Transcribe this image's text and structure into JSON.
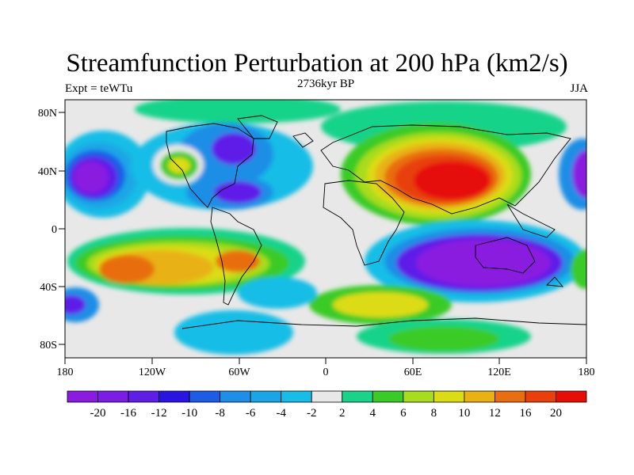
{
  "title": "Streamfunction Perturbation at 200 hPa (km2/s)",
  "subtitle_left": "Expt = teWTu",
  "subtitle_center": "2736kyr BP",
  "subtitle_right": "JJA",
  "y_ticks": [
    "80N",
    "40N",
    "0",
    "40S",
    "80S"
  ],
  "x_ticks": [
    "180",
    "120W",
    "60W",
    "0",
    "60E",
    "120E",
    "180"
  ],
  "colorbar": {
    "labels": [
      "-20",
      "-16",
      "-12",
      "-10",
      "-8",
      "-6",
      "-4",
      "-2",
      "2",
      "4",
      "6",
      "8",
      "10",
      "12",
      "16",
      "20"
    ],
    "colors": [
      "#8a1be0",
      "#7a1ee6",
      "#5f1ee8",
      "#2a14e2",
      "#1e5ce8",
      "#1e8ee6",
      "#1aa6e6",
      "#17bde6",
      "#e8e8e8",
      "#19d38a",
      "#3acb28",
      "#a8dc1e",
      "#dcdc14",
      "#e8b214",
      "#e86e10",
      "#e83f0c",
      "#e60f08"
    ]
  }
}
